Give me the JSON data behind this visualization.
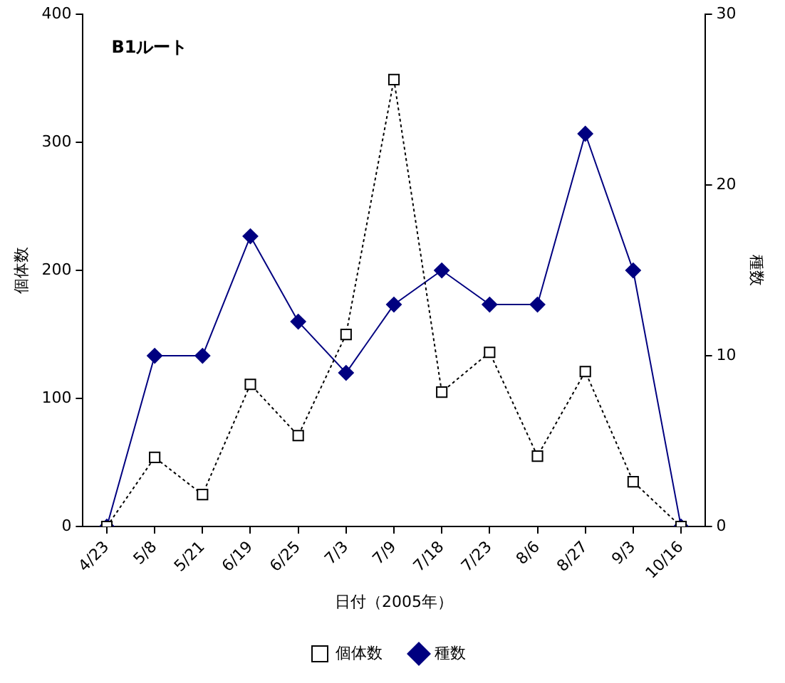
{
  "chart_data": {
    "type": "line",
    "xlabel": "日付（2005年）",
    "ylabel": "個体数",
    "y2label": "種数",
    "annotations": [
      "B1ルート"
    ],
    "categories": [
      "4/23",
      "5/8",
      "5/21",
      "6/19",
      "6/25",
      "7/3",
      "7/9",
      "7/18",
      "7/23",
      "8/6",
      "8/27",
      "9/3",
      "10/16"
    ],
    "series": [
      {
        "name": "個体数",
        "color": "#000000",
        "marker": "square",
        "line_style": "dotted",
        "values": [
          0,
          54,
          25,
          111,
          71,
          150,
          349,
          105,
          136,
          55,
          121,
          35,
          0
        ]
      },
      {
        "name": "種数",
        "color": "#000080",
        "marker": "diamond",
        "line_style": "solid",
        "axis": "y2",
        "values": [
          0,
          10,
          10,
          17,
          12,
          9,
          13,
          15,
          13,
          13,
          23,
          15,
          0
        ]
      }
    ],
    "ylim": [
      0,
      400
    ],
    "yticks": [
      0,
      100,
      200,
      300,
      400
    ],
    "y2lim": [
      0,
      30
    ],
    "y2ticks": [
      0,
      10,
      20,
      30
    ],
    "grid": false,
    "legend": "bottom"
  }
}
